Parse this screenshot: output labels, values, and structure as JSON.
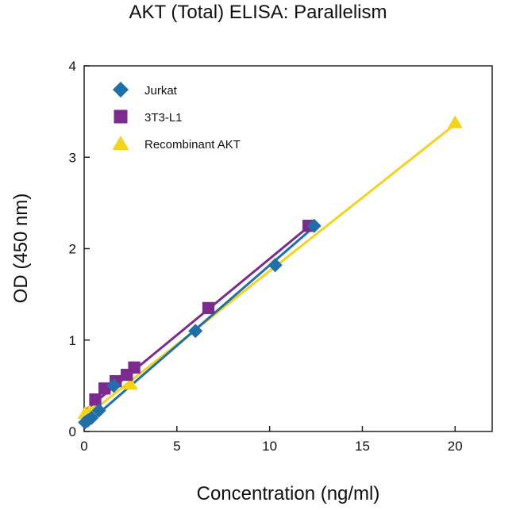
{
  "chart_data": {
    "type": "scatter",
    "title": "AKT (Total) ELISA: Parallelism",
    "xlabel": "Concentration (ng/ml)",
    "ylabel": "OD (450 nm)",
    "xlim": [
      0,
      22
    ],
    "ylim": [
      0,
      4
    ],
    "xticks": [
      0,
      5,
      10,
      15,
      20
    ],
    "yticks": [
      0,
      1,
      2,
      3,
      4
    ],
    "grid": false,
    "legend_position": "top-left",
    "series": [
      {
        "name": "Jurkat",
        "marker": "diamond",
        "color": "#1f6fa8",
        "points": [
          [
            0.05,
            0.1
          ],
          [
            0.2,
            0.12
          ],
          [
            0.4,
            0.15
          ],
          [
            0.8,
            0.23
          ],
          [
            1.6,
            0.5
          ],
          [
            6.0,
            1.1
          ],
          [
            10.3,
            1.82
          ],
          [
            12.4,
            2.25
          ]
        ],
        "fit": [
          [
            0,
            0.06
          ],
          [
            12.4,
            2.24
          ]
        ]
      },
      {
        "name": "3T3-L1",
        "marker": "square",
        "color": "#7d2a8e",
        "points": [
          [
            0.6,
            0.35
          ],
          [
            1.1,
            0.47
          ],
          [
            1.7,
            0.55
          ],
          [
            2.3,
            0.62
          ],
          [
            2.7,
            0.7
          ],
          [
            6.7,
            1.35
          ],
          [
            12.1,
            2.25
          ]
        ],
        "fit": [
          [
            0,
            0.22
          ],
          [
            12.1,
            2.24
          ]
        ]
      },
      {
        "name": "Recombinant AKT",
        "marker": "triangle",
        "color": "#f4d31a",
        "points": [
          [
            0.05,
            0.2
          ],
          [
            0.3,
            0.22
          ],
          [
            0.6,
            0.25
          ],
          [
            2.5,
            0.52
          ],
          [
            20.0,
            3.38
          ]
        ],
        "fit": [
          [
            0,
            0.15
          ],
          [
            20.0,
            3.36
          ]
        ]
      }
    ]
  }
}
